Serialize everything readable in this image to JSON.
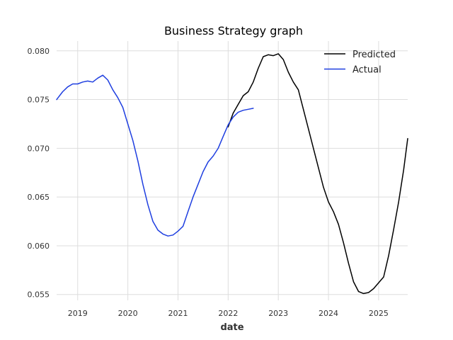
{
  "chart_data": {
    "type": "line",
    "title": "Business Strategy graph",
    "xlabel": "date",
    "ylabel": "",
    "xlim": [
      2018.58,
      2025.58
    ],
    "ylim": [
      0.0544,
      0.081
    ],
    "x_ticks": [
      2019,
      2020,
      2021,
      2022,
      2023,
      2024,
      2025
    ],
    "x_tick_labels": [
      "2019",
      "2020",
      "2021",
      "2022",
      "2023",
      "2024",
      "2025"
    ],
    "y_ticks": [
      0.055,
      0.06,
      0.065,
      0.07,
      0.075,
      0.08
    ],
    "y_tick_labels": [
      "0.055",
      "0.060",
      "0.065",
      "0.070",
      "0.075",
      "0.080"
    ],
    "grid": true,
    "legend_position": "top-right",
    "series": [
      {
        "name": "Predicted",
        "color": "#000000",
        "x": [
          2022.0,
          2022.1,
          2022.2,
          2022.3,
          2022.4,
          2022.5,
          2022.6,
          2022.7,
          2022.8,
          2022.9,
          2023.0,
          2023.1,
          2023.2,
          2023.3,
          2023.4,
          2023.5,
          2023.6,
          2023.7,
          2023.8,
          2023.9,
          2024.0,
          2024.1,
          2024.2,
          2024.3,
          2024.4,
          2024.5,
          2024.6,
          2024.7,
          2024.8,
          2024.9,
          2025.0,
          2025.1,
          2025.2,
          2025.3,
          2025.4,
          2025.5,
          2025.58
        ],
        "values": [
          0.0722,
          0.0736,
          0.0745,
          0.0754,
          0.0758,
          0.0768,
          0.0782,
          0.0794,
          0.0796,
          0.0795,
          0.0797,
          0.0791,
          0.0778,
          0.0768,
          0.076,
          0.074,
          0.072,
          0.07,
          0.068,
          0.066,
          0.0645,
          0.0635,
          0.0622,
          0.0603,
          0.0582,
          0.0563,
          0.0553,
          0.0551,
          0.0552,
          0.0556,
          0.0562,
          0.0568,
          0.059,
          0.0617,
          0.0645,
          0.0678,
          0.071
        ]
      },
      {
        "name": "Actual",
        "color": "#1f3fe0",
        "x": [
          2018.58,
          2018.7,
          2018.8,
          2018.9,
          2019.0,
          2019.1,
          2019.2,
          2019.3,
          2019.4,
          2019.5,
          2019.6,
          2019.7,
          2019.8,
          2019.9,
          2020.0,
          2020.1,
          2020.2,
          2020.3,
          2020.4,
          2020.5,
          2020.6,
          2020.7,
          2020.8,
          2020.9,
          2021.0,
          2021.1,
          2021.2,
          2021.3,
          2021.4,
          2021.5,
          2021.6,
          2021.7,
          2021.8,
          2021.9,
          2022.0,
          2022.1,
          2022.2,
          2022.3,
          2022.4,
          2022.5
        ],
        "values": [
          0.075,
          0.0758,
          0.0763,
          0.0766,
          0.0766,
          0.0768,
          0.0769,
          0.0768,
          0.0772,
          0.0775,
          0.077,
          0.076,
          0.0752,
          0.0742,
          0.0725,
          0.0708,
          0.0687,
          0.0663,
          0.0642,
          0.0625,
          0.0616,
          0.0612,
          0.061,
          0.0611,
          0.0615,
          0.062,
          0.0635,
          0.065,
          0.0663,
          0.0676,
          0.0686,
          0.0692,
          0.07,
          0.0712,
          0.0724,
          0.0732,
          0.0737,
          0.0739,
          0.074,
          0.0741
        ]
      }
    ]
  }
}
